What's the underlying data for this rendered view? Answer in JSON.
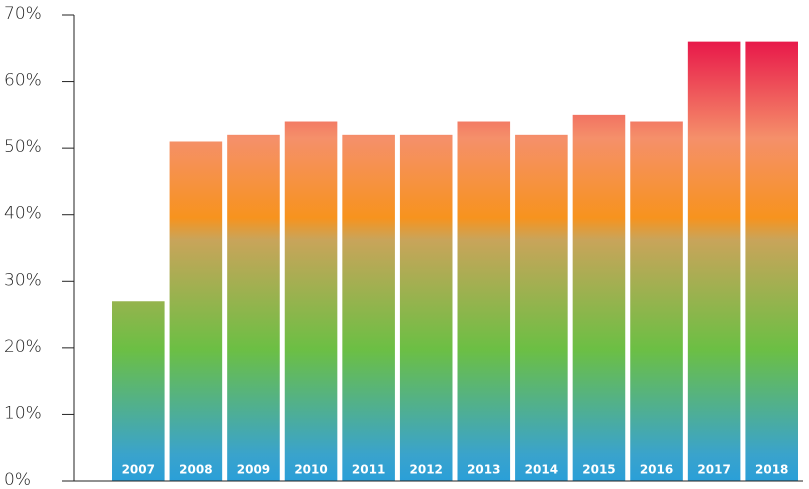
{
  "chart_data": {
    "type": "bar",
    "categories": [
      "2007",
      "2008",
      "2009",
      "2010",
      "2011",
      "2012",
      "2013",
      "2014",
      "2015",
      "2016",
      "2017",
      "2018"
    ],
    "values": [
      27,
      51,
      52,
      54,
      52,
      52,
      54,
      52,
      55,
      54,
      66,
      66
    ],
    "ylim": [
      0,
      70
    ],
    "yticks": [
      {
        "value": 0,
        "label": "0%"
      },
      {
        "value": 10,
        "label": "10%"
      },
      {
        "value": 20,
        "label": "20%"
      },
      {
        "value": 30,
        "label": "30%"
      },
      {
        "value": 40,
        "label": "40%"
      },
      {
        "value": 50,
        "label": "50%"
      },
      {
        "value": 60,
        "label": "60%"
      },
      {
        "value": 70,
        "label": "70%"
      }
    ],
    "grid": false
  }
}
